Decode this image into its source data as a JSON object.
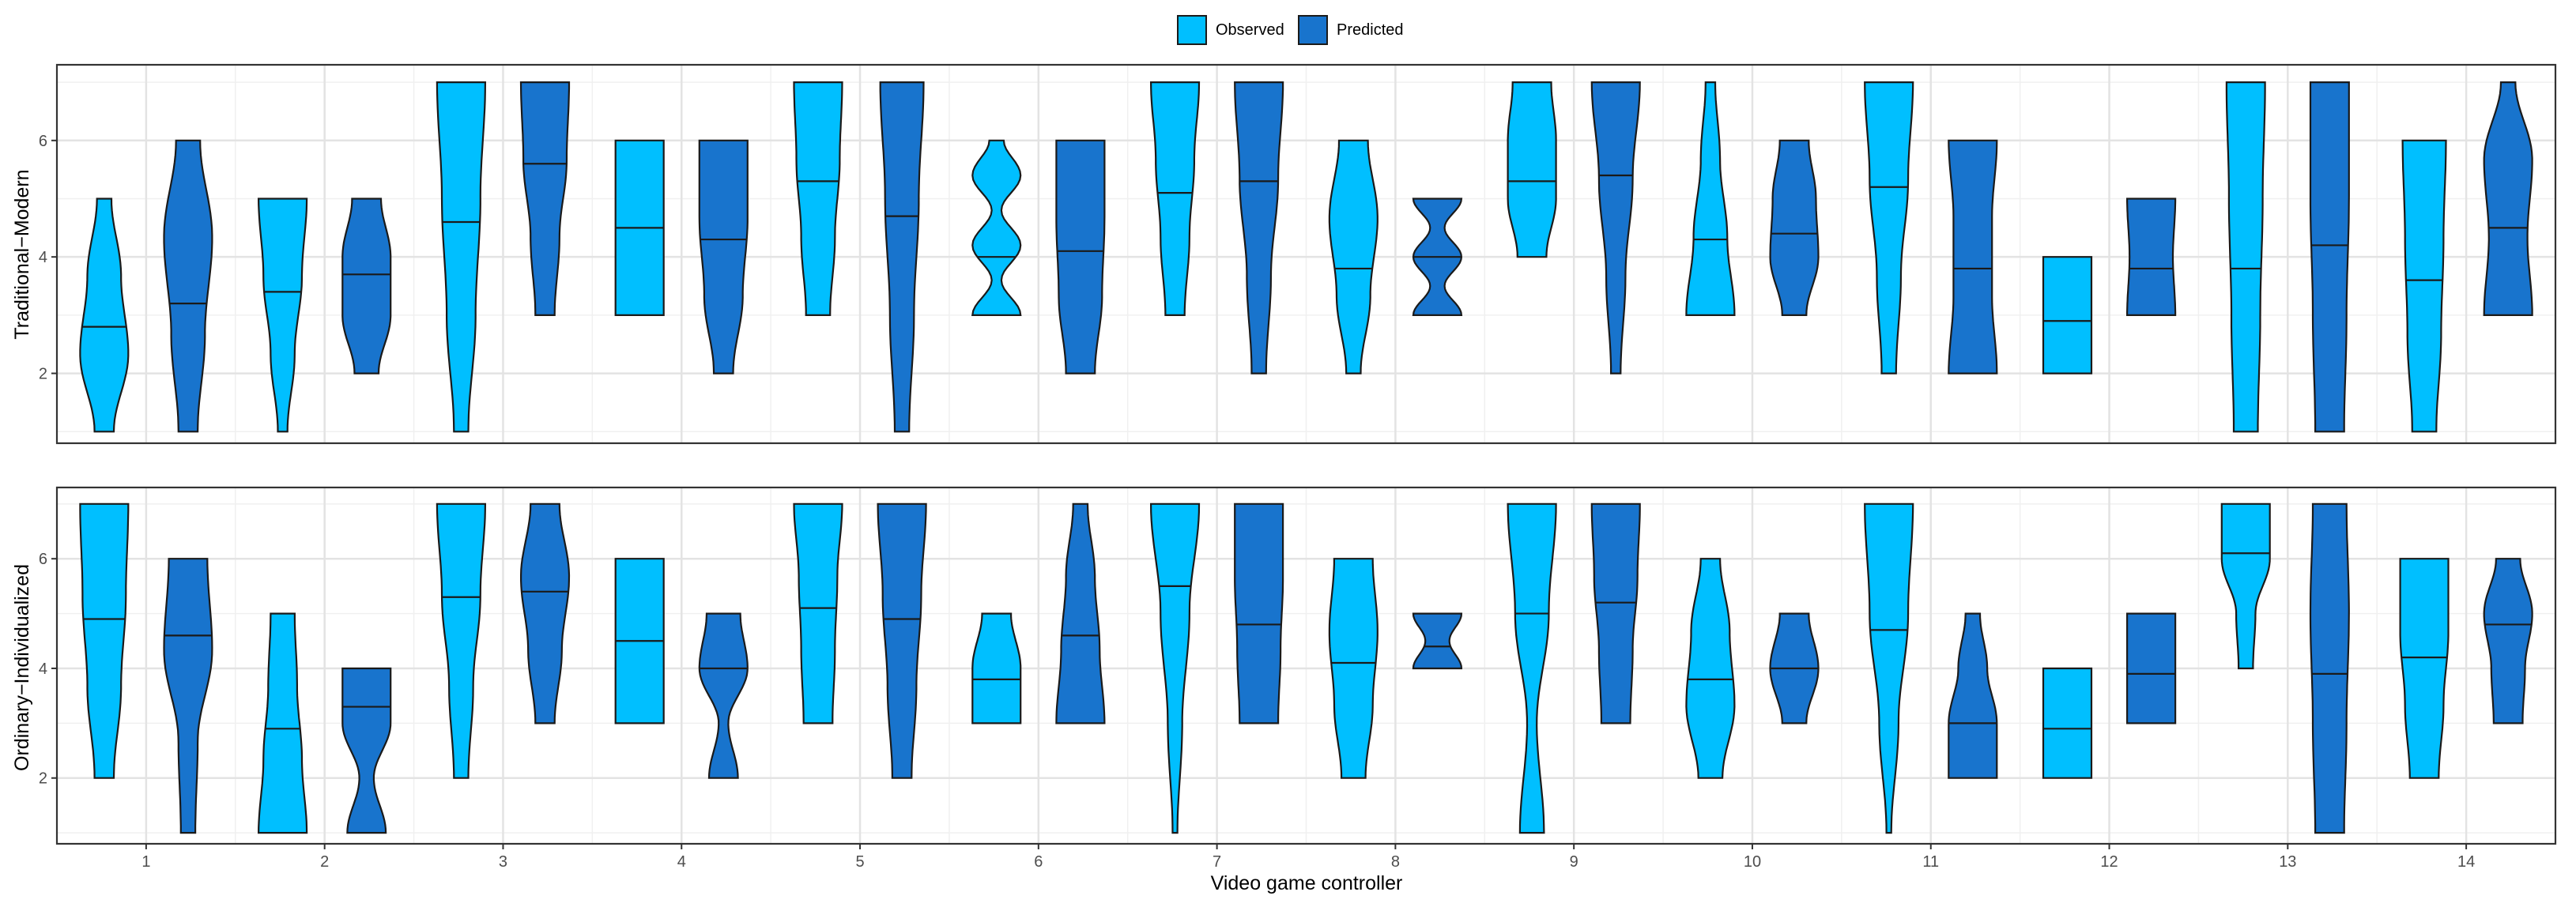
{
  "chart_data": {
    "type": "violin",
    "xlabel": "Video game controller",
    "categories": [
      "1",
      "2",
      "3",
      "4",
      "5",
      "6",
      "7",
      "8",
      "9",
      "10",
      "11",
      "12",
      "13",
      "14"
    ],
    "legend": [
      {
        "name": "Observed",
        "color": "#00BFFF"
      },
      {
        "name": "Predicted",
        "color": "#1874CD"
      }
    ],
    "legend_position": "top-center",
    "grid": true,
    "panels": [
      {
        "ylabel": "Traditional−Modern",
        "ylim": [
          0.8,
          7.3
        ],
        "yticks": [
          2,
          4,
          6
        ],
        "observed": [
          {
            "min": 1,
            "max": 5,
            "median": 2.8,
            "density": [
              0.4,
              1,
              0.7,
              0.3
            ]
          },
          {
            "min": 1,
            "max": 5,
            "median": 3.4,
            "density": [
              0.2,
              0.5,
              0.8,
              1
            ]
          },
          {
            "min": 1,
            "max": 7,
            "median": 4.6,
            "density": [
              0.3,
              0.6,
              0.8,
              1
            ]
          },
          {
            "min": 3,
            "max": 6,
            "median": 4.5,
            "density": [
              1,
              1,
              1,
              1
            ]
          },
          {
            "min": 3,
            "max": 7,
            "median": 5.3,
            "density": [
              0.5,
              0.7,
              0.9,
              1
            ]
          },
          {
            "min": 3,
            "max": 6,
            "median": 4.0,
            "density": [
              1,
              0.2,
              1,
              0.2,
              1,
              0.3
            ]
          },
          {
            "min": 3,
            "max": 7,
            "median": 5.1,
            "density": [
              0.4,
              0.6,
              0.8,
              1
            ]
          },
          {
            "min": 2,
            "max": 6,
            "median": 3.8,
            "density": [
              0.3,
              0.7,
              1,
              0.6
            ]
          },
          {
            "min": 4,
            "max": 7,
            "median": 5.3,
            "density": [
              0.6,
              1,
              1,
              0.8
            ]
          },
          {
            "min": 3,
            "max": 7,
            "median": 4.3,
            "density": [
              1,
              0.7,
              0.4,
              0.2
            ]
          },
          {
            "min": 2,
            "max": 7,
            "median": 5.2,
            "density": [
              0.3,
              0.5,
              0.8,
              1
            ]
          },
          {
            "min": 2,
            "max": 4,
            "median": 2.9,
            "density": [
              1,
              1,
              1
            ]
          },
          {
            "min": 1,
            "max": 7,
            "median": 3.8,
            "density": [
              0.5,
              0.6,
              0.7,
              0.8
            ]
          },
          {
            "min": 1,
            "max": 6,
            "median": 3.6,
            "density": [
              0.5,
              0.7,
              0.8,
              0.9
            ]
          }
        ],
        "predicted": [
          {
            "min": 1,
            "max": 6,
            "median": 3.2,
            "density": [
              0.4,
              0.7,
              1,
              0.5
            ]
          },
          {
            "min": 2,
            "max": 5,
            "median": 3.7,
            "density": [
              0.5,
              1,
              1,
              0.6
            ]
          },
          {
            "min": 3,
            "max": 7,
            "median": 5.6,
            "density": [
              0.4,
              0.6,
              0.9,
              1
            ]
          },
          {
            "min": 2,
            "max": 6,
            "median": 4.3,
            "density": [
              0.4,
              0.8,
              1,
              1
            ]
          },
          {
            "min": 1,
            "max": 7,
            "median": 4.7,
            "density": [
              0.3,
              0.5,
              0.7,
              0.9
            ]
          },
          {
            "min": 2,
            "max": 6,
            "median": 4.1,
            "density": [
              0.6,
              0.9,
              1,
              1
            ]
          },
          {
            "min": 2,
            "max": 7,
            "median": 5.3,
            "density": [
              0.3,
              0.5,
              0.8,
              1
            ]
          },
          {
            "min": 3,
            "max": 5,
            "median": 4.0,
            "density": [
              1,
              0.3,
              1,
              0.3,
              1
            ]
          },
          {
            "min": 2,
            "max": 7,
            "median": 5.4,
            "density": [
              0.2,
              0.4,
              0.7,
              1
            ]
          },
          {
            "min": 3,
            "max": 6,
            "median": 4.4,
            "density": [
              0.5,
              1,
              0.9,
              0.6
            ]
          },
          {
            "min": 2,
            "max": 6,
            "median": 3.8,
            "density": [
              1,
              0.8,
              0.8,
              1
            ]
          },
          {
            "min": 3,
            "max": 5,
            "median": 3.8,
            "density": [
              1,
              0.9,
              1
            ]
          },
          {
            "min": 1,
            "max": 7,
            "median": 4.2,
            "density": [
              0.6,
              0.7,
              0.8,
              0.8
            ]
          },
          {
            "min": 3,
            "max": 7,
            "median": 4.5,
            "density": [
              1,
              0.8,
              1,
              0.3
            ]
          }
        ]
      },
      {
        "ylabel": "Ordinary−Individualized",
        "ylim": [
          0.8,
          7.3
        ],
        "yticks": [
          2,
          4,
          6
        ],
        "observed": [
          {
            "min": 2,
            "max": 7,
            "median": 4.9,
            "density": [
              0.4,
              0.7,
              0.9,
              1
            ]
          },
          {
            "min": 1,
            "max": 5,
            "median": 2.9,
            "density": [
              1,
              0.8,
              0.6,
              0.5
            ]
          },
          {
            "min": 2,
            "max": 7,
            "median": 5.3,
            "density": [
              0.3,
              0.5,
              0.8,
              1
            ]
          },
          {
            "min": 3,
            "max": 6,
            "median": 4.5,
            "density": [
              1,
              1,
              1,
              1
            ]
          },
          {
            "min": 3,
            "max": 7,
            "median": 5.1,
            "density": [
              0.6,
              0.7,
              0.8,
              1
            ]
          },
          {
            "min": 3,
            "max": 5,
            "median": 3.8,
            "density": [
              1,
              1,
              0.6
            ]
          },
          {
            "min": 1,
            "max": 7,
            "median": 5.5,
            "density": [
              0.1,
              0.3,
              0.6,
              1
            ]
          },
          {
            "min": 2,
            "max": 6,
            "median": 4.1,
            "density": [
              0.5,
              0.8,
              1,
              0.8
            ]
          },
          {
            "min": 1,
            "max": 7,
            "median": 5.0,
            "density": [
              0.5,
              0.2,
              0.7,
              1
            ]
          },
          {
            "min": 2,
            "max": 6,
            "median": 3.8,
            "density": [
              0.5,
              1,
              0.8,
              0.4
            ]
          },
          {
            "min": 1,
            "max": 7,
            "median": 4.7,
            "density": [
              0.1,
              0.4,
              0.8,
              1
            ]
          },
          {
            "min": 2,
            "max": 4,
            "median": 2.9,
            "density": [
              1,
              1,
              1
            ]
          },
          {
            "min": 4,
            "max": 7,
            "median": 6.1,
            "density": [
              0.3,
              0.4,
              1,
              1
            ]
          },
          {
            "min": 2,
            "max": 6,
            "median": 4.2,
            "density": [
              0.6,
              0.8,
              1,
              1
            ]
          }
        ],
        "predicted": [
          {
            "min": 1,
            "max": 6,
            "median": 4.6,
            "density": [
              0.3,
              0.4,
              1,
              0.8
            ]
          },
          {
            "min": 1,
            "max": 4,
            "median": 3.3,
            "density": [
              0.8,
              0.3,
              1,
              1
            ]
          },
          {
            "min": 3,
            "max": 7,
            "median": 5.4,
            "density": [
              0.4,
              0.7,
              1,
              0.6
            ]
          },
          {
            "min": 2,
            "max": 5,
            "median": 4.0,
            "density": [
              0.6,
              0.2,
              1,
              0.7
            ]
          },
          {
            "min": 2,
            "max": 7,
            "median": 4.9,
            "density": [
              0.4,
              0.6,
              0.8,
              1
            ]
          },
          {
            "min": 3,
            "max": 7,
            "median": 4.6,
            "density": [
              1,
              0.8,
              0.6,
              0.3
            ]
          },
          {
            "min": 3,
            "max": 7,
            "median": 4.8,
            "density": [
              0.8,
              0.9,
              1,
              1
            ]
          },
          {
            "min": 4,
            "max": 5,
            "median": 4.4,
            "density": [
              1,
              0.5,
              1
            ]
          },
          {
            "min": 3,
            "max": 7,
            "median": 5.2,
            "density": [
              0.6,
              0.7,
              0.9,
              1
            ]
          },
          {
            "min": 3,
            "max": 5,
            "median": 4.0,
            "density": [
              0.5,
              1,
              0.6
            ]
          },
          {
            "min": 2,
            "max": 5,
            "median": 3.0,
            "density": [
              1,
              1,
              0.6,
              0.3
            ]
          },
          {
            "min": 3,
            "max": 5,
            "median": 3.9,
            "density": [
              1,
              1,
              1
            ]
          },
          {
            "min": 1,
            "max": 7,
            "median": 3.9,
            "density": [
              0.6,
              0.7,
              0.8,
              0.7
            ]
          },
          {
            "min": 3,
            "max": 6,
            "median": 4.8,
            "density": [
              0.6,
              0.7,
              1,
              0.5
            ]
          }
        ]
      }
    ]
  }
}
